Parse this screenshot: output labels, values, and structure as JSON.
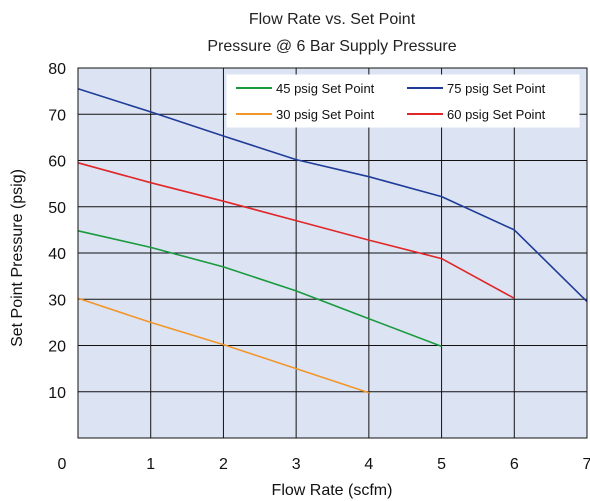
{
  "chart_data": {
    "type": "line",
    "title": [
      "Flow Rate vs. Set Point",
      "Pressure @ 6 Bar Supply Pressure"
    ],
    "xlabel": "Flow Rate (scfm)",
    "ylabel": "Set Point Pressure (psig)",
    "xlim": [
      0,
      7
    ],
    "ylim": [
      0,
      80
    ],
    "xticks": [
      0,
      1,
      2,
      3,
      4,
      5,
      6,
      7
    ],
    "yticks": [
      10,
      20,
      30,
      40,
      50,
      60,
      70,
      80
    ],
    "xtick_labels": [
      "0",
      "1",
      "2",
      "3",
      "4",
      "5",
      "6",
      "7"
    ],
    "ytick_labels": [
      "10",
      "20",
      "30",
      "40",
      "50",
      "60",
      "70",
      "80"
    ],
    "grid": true,
    "background_color": "#dce4f4",
    "legend_position": "top-right",
    "series": [
      {
        "name": "45 psig Set Point",
        "color": "#1a9a3e",
        "x": [
          0,
          1,
          2,
          3,
          4,
          5
        ],
        "y": [
          44.8,
          41.2,
          37.0,
          31.8,
          25.8,
          19.8
        ]
      },
      {
        "name": "75 psig Set Point",
        "color": "#1f3c98",
        "x": [
          0,
          1,
          2,
          3,
          4,
          5,
          6,
          7
        ],
        "y": [
          75.5,
          70.5,
          65.3,
          60.2,
          56.5,
          52.2,
          45.0,
          29.5
        ]
      },
      {
        "name": "30 psig Set Point",
        "color": "#f2962a",
        "x": [
          0,
          1,
          2,
          3,
          4
        ],
        "y": [
          30.2,
          25.0,
          20.2,
          15.0,
          9.8
        ]
      },
      {
        "name": "60 psig Set Point",
        "color": "#e02626",
        "x": [
          0,
          1,
          2,
          3,
          4,
          5,
          6
        ],
        "y": [
          59.5,
          55.2,
          51.2,
          47.0,
          42.8,
          38.8,
          30.2
        ]
      }
    ]
  }
}
